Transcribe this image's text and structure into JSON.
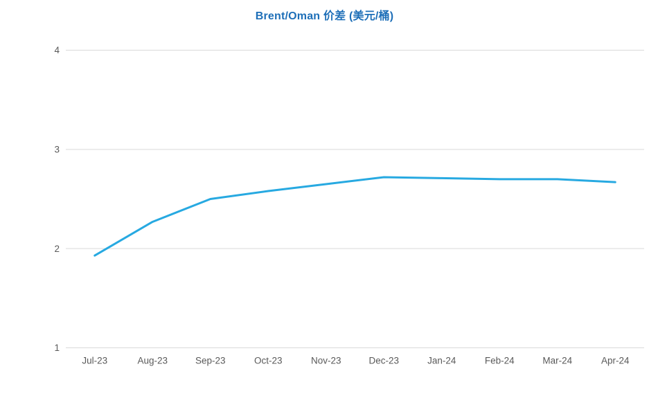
{
  "chart_data": {
    "type": "line",
    "title": "Brent/Oman 价差 (美元/桶)",
    "categories": [
      "Jul-23",
      "Aug-23",
      "Sep-23",
      "Oct-23",
      "Nov-23",
      "Dec-23",
      "Jan-24",
      "Feb-24",
      "Mar-24",
      "Apr-24"
    ],
    "values": [
      1.93,
      2.27,
      2.5,
      2.58,
      2.65,
      2.72,
      2.71,
      2.7,
      2.7,
      2.67
    ],
    "xlabel": "",
    "ylabel": "",
    "ylim": [
      1,
      4
    ],
    "yticks": [
      1,
      2,
      3,
      4
    ],
    "grid": "horizontal",
    "legend": "none",
    "line_color": "#27A9E1",
    "gridline_color": "#D9D9D9",
    "tick_label_color": "#595959",
    "title_color": "#1E6FB8"
  }
}
